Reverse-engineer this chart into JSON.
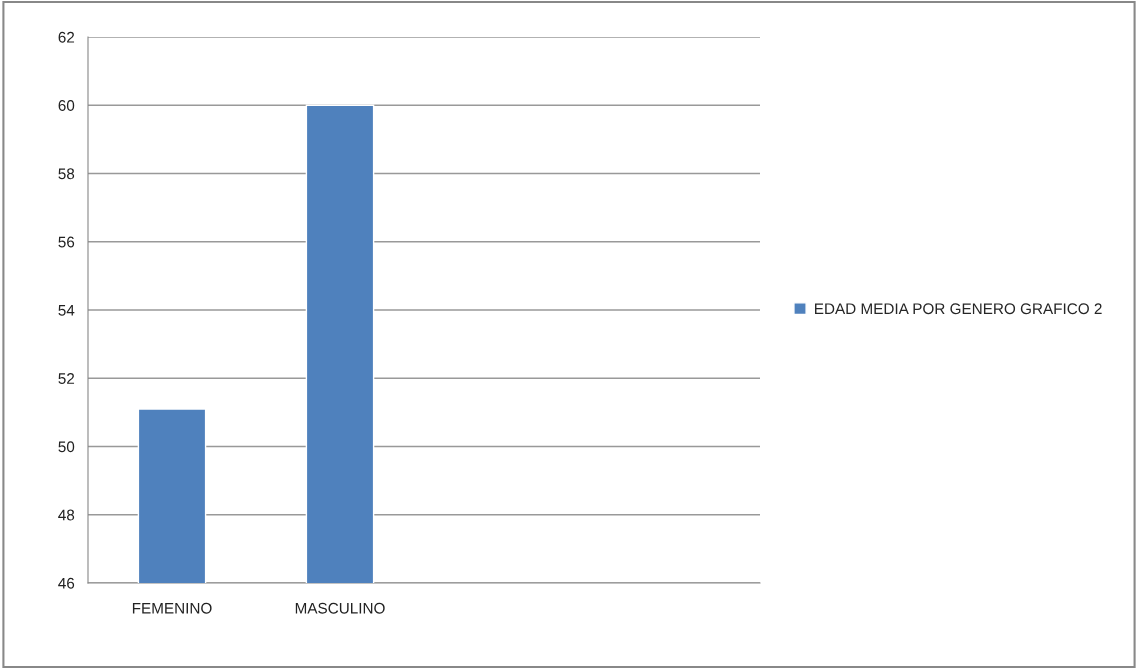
{
  "chart_data": {
    "type": "bar",
    "categories": [
      "FEMENINO",
      "MASCULINO",
      null,
      null
    ],
    "series": [
      {
        "name": "EDAD MEDIA POR GENERO GRAFICO 2",
        "color": "#4f81bd",
        "values": [
          51.1,
          60,
          null,
          null
        ]
      }
    ],
    "ylim": [
      46,
      62
    ],
    "yticks": [
      46,
      48,
      50,
      52,
      54,
      56,
      58,
      60,
      62
    ],
    "grid": "y",
    "legend": "right"
  }
}
